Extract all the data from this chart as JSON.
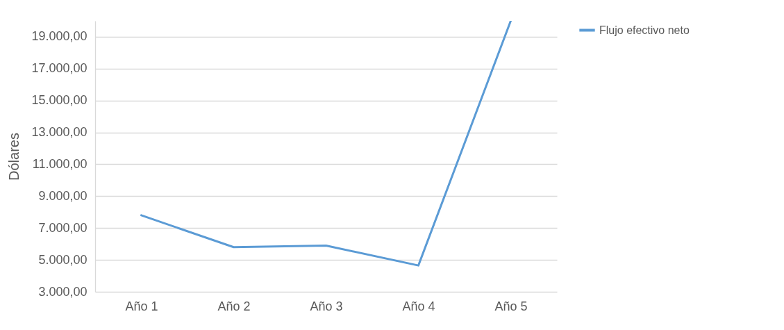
{
  "chart_data": {
    "type": "line",
    "ylabel": "Dólares",
    "categories": [
      "Año 1",
      "Año 2",
      "Año 3",
      "Año 4",
      "Año 5"
    ],
    "series": [
      {
        "name": "Flujo efectivo neto",
        "color": "#5b9bd5",
        "values": [
          7800,
          5800,
          5900,
          4650,
          20000
        ]
      }
    ],
    "ylim": [
      3000,
      20000
    ],
    "yticks": [
      {
        "value": 3000,
        "label": "3.000,00"
      },
      {
        "value": 5000,
        "label": "5.000,00"
      },
      {
        "value": 7000,
        "label": "7.000,00"
      },
      {
        "value": 9000,
        "label": "9.000,00"
      },
      {
        "value": 11000,
        "label": "11.000,00"
      },
      {
        "value": 13000,
        "label": "13.000,00"
      },
      {
        "value": 15000,
        "label": "15.000,00"
      },
      {
        "value": 17000,
        "label": "17.000,00"
      },
      {
        "value": 19000,
        "label": "19.000,00"
      }
    ],
    "grid": "y",
    "legend": "right",
    "marker": "none",
    "line_style": "solid"
  }
}
